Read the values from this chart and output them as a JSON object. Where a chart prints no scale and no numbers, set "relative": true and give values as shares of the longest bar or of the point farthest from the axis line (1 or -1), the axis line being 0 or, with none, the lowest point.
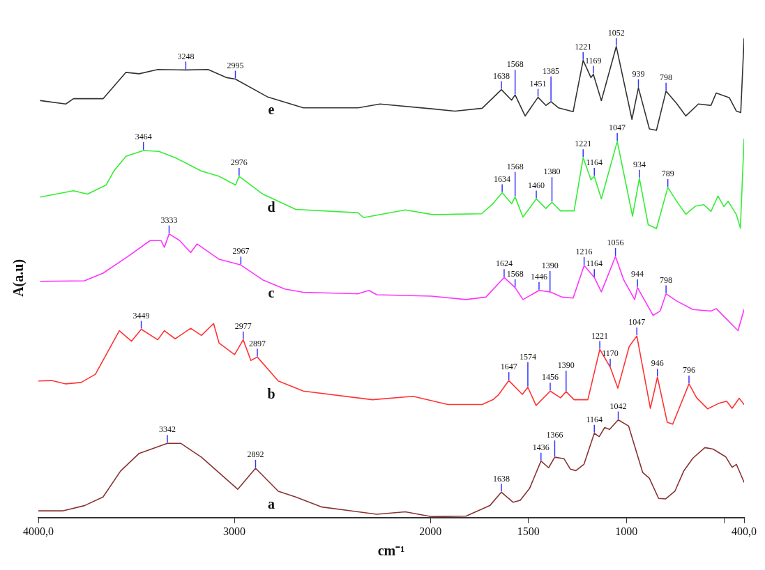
{
  "chart_data": {
    "type": "line",
    "relative": true,
    "xlabel": "cm⁻¹",
    "ylabel": "A(a.u)",
    "marker": "none",
    "line_style": "solid",
    "xlim": [
      4000,
      400
    ],
    "xticks": [
      {
        "value": 4000,
        "label": "4000,0"
      },
      3000,
      2000,
      1500,
      1000,
      {
        "value": 500,
        "label": null
      },
      {
        "value": 400,
        "label": "400,0"
      }
    ],
    "series": [
      {
        "name": "e",
        "color": "#333333",
        "x": [
          3989,
          3860,
          3821,
          3670,
          3553,
          3486,
          3391,
          3248,
          3134,
          3039,
          2995,
          2832,
          2648,
          2369,
          2257,
          1994,
          1875,
          1736,
          1638,
          1586,
          1568,
          1517,
          1451,
          1411,
          1385,
          1347,
          1272,
          1221,
          1181,
          1169,
          1128,
          1052,
          972,
          939,
          883,
          847,
          798,
          744,
          697,
          633,
          569,
          542,
          475,
          439,
          417,
          400
        ],
        "values": [
          0.87,
          0.863,
          0.874,
          0.874,
          0.929,
          0.926,
          0.935,
          0.934,
          0.935,
          0.918,
          0.915,
          0.878,
          0.855,
          0.855,
          0.863,
          0.853,
          0.848,
          0.854,
          0.893,
          0.871,
          0.882,
          0.838,
          0.877,
          0.86,
          0.868,
          0.855,
          0.847,
          0.954,
          0.918,
          0.925,
          0.87,
          0.983,
          0.831,
          0.897,
          0.811,
          0.808,
          0.89,
          0.864,
          0.838,
          0.863,
          0.86,
          0.886,
          0.876,
          0.848,
          0.845,
          1.0
        ]
      },
      {
        "name": "d",
        "color": "#33ee33",
        "x": [
          3989,
          3821,
          3749,
          3654,
          3615,
          3553,
          3464,
          3385,
          3302,
          3168,
          3078,
          2994,
          2976,
          2855,
          2687,
          2369,
          2341,
          2128,
          1986,
          1864,
          1739,
          1681,
          1634,
          1586,
          1568,
          1528,
          1460,
          1411,
          1380,
          1336,
          1267,
          1221,
          1181,
          1164,
          1128,
          1047,
          969,
          934,
          889,
          847,
          789,
          744,
          697,
          647,
          606,
          569,
          533,
          503,
          481,
          439,
          419,
          400
        ],
        "values": [
          0.669,
          0.682,
          0.675,
          0.694,
          0.723,
          0.754,
          0.766,
          0.764,
          0.751,
          0.723,
          0.712,
          0.694,
          0.712,
          0.675,
          0.643,
          0.636,
          0.626,
          0.642,
          0.632,
          0.633,
          0.634,
          0.655,
          0.678,
          0.655,
          0.669,
          0.627,
          0.665,
          0.645,
          0.658,
          0.64,
          0.64,
          0.751,
          0.705,
          0.712,
          0.665,
          0.785,
          0.629,
          0.708,
          0.611,
          0.603,
          0.689,
          0.66,
          0.633,
          0.65,
          0.653,
          0.639,
          0.671,
          0.649,
          0.66,
          0.632,
          0.604,
          0.79
        ]
      },
      {
        "name": "c",
        "color": "#ff33ff",
        "x": [
          3989,
          3765,
          3670,
          3542,
          3430,
          3374,
          3357,
          3333,
          3279,
          3223,
          3190,
          3078,
          2967,
          2855,
          2743,
          2648,
          2369,
          2313,
          2274,
          1994,
          1819,
          1717,
          1624,
          1568,
          1528,
          1446,
          1390,
          1328,
          1272,
          1216,
          1164,
          1128,
          1056,
          1014,
          958,
          944,
          864,
          828,
          798,
          744,
          661,
          569,
          542,
          431,
          400
        ],
        "values": [
          0.493,
          0.494,
          0.51,
          0.545,
          0.578,
          0.578,
          0.564,
          0.592,
          0.578,
          0.553,
          0.571,
          0.539,
          0.527,
          0.496,
          0.477,
          0.47,
          0.467,
          0.474,
          0.465,
          0.462,
          0.455,
          0.46,
          0.501,
          0.48,
          0.455,
          0.474,
          0.471,
          0.46,
          0.458,
          0.526,
          0.501,
          0.471,
          0.545,
          0.496,
          0.455,
          0.48,
          0.422,
          0.431,
          0.467,
          0.452,
          0.434,
          0.431,
          0.436,
          0.39,
          0.434
        ]
      },
      {
        "name": "b",
        "color": "#ff3333",
        "x": [
          4000,
          3933,
          3860,
          3782,
          3709,
          3587,
          3525,
          3475,
          3391,
          3357,
          3302,
          3223,
          3168,
          3106,
          3078,
          2999,
          2955,
          2916,
          2883,
          2776,
          2648,
          2296,
          2089,
          1911,
          1736,
          1681,
          1653,
          1600,
          1531,
          1503,
          1461,
          1389,
          1336,
          1308,
          1267,
          1197,
          1136,
          1083,
          1044,
          986,
          947,
          878,
          842,
          792,
          764,
          681,
          642,
          586,
          531,
          489,
          461,
          425,
          400
        ],
        "values": [
          0.285,
          0.286,
          0.279,
          0.282,
          0.299,
          0.39,
          0.368,
          0.393,
          0.371,
          0.39,
          0.373,
          0.395,
          0.38,
          0.405,
          0.364,
          0.34,
          0.371,
          0.328,
          0.335,
          0.285,
          0.264,
          0.246,
          0.253,
          0.236,
          0.236,
          0.246,
          0.256,
          0.286,
          0.257,
          0.272,
          0.234,
          0.264,
          0.25,
          0.263,
          0.246,
          0.246,
          0.351,
          0.314,
          0.27,
          0.357,
          0.379,
          0.228,
          0.293,
          0.199,
          0.195,
          0.279,
          0.25,
          0.227,
          0.238,
          0.243,
          0.228,
          0.249,
          0.236
        ]
      },
      {
        "name": "a",
        "color": "#883333",
        "x": [
          4000,
          3877,
          3765,
          3670,
          3581,
          3486,
          3342,
          3274,
          3168,
          2983,
          2892,
          2776,
          2687,
          2553,
          2274,
          2128,
          1994,
          1819,
          1697,
          1638,
          1578,
          1542,
          1494,
          1436,
          1397,
          1366,
          1319,
          1286,
          1258,
          1217,
          1164,
          1139,
          1111,
          1086,
          1042,
          989,
          917,
          883,
          836,
          800,
          753,
          708,
          661,
          600,
          558,
          494,
          461,
          439,
          400
        ],
        "values": [
          0.014,
          0.014,
          0.025,
          0.043,
          0.097,
          0.134,
          0.155,
          0.155,
          0.126,
          0.059,
          0.103,
          0.055,
          0.043,
          0.022,
          0.007,
          0.012,
          0.002,
          0.003,
          0.025,
          0.053,
          0.032,
          0.036,
          0.061,
          0.118,
          0.104,
          0.126,
          0.123,
          0.101,
          0.098,
          0.111,
          0.176,
          0.169,
          0.188,
          0.184,
          0.204,
          0.191,
          0.094,
          0.082,
          0.04,
          0.039,
          0.055,
          0.097,
          0.124,
          0.146,
          0.143,
          0.127,
          0.105,
          0.111,
          0.074
        ]
      }
    ],
    "annotations": [
      {
        "text": "3248",
        "x": 3248,
        "y": 0.934
      },
      {
        "text": "2995",
        "x": 2995,
        "y": 0.915
      },
      {
        "text": "1638",
        "x": 1638,
        "y": 0.893
      },
      {
        "text": "1568",
        "x": 1568,
        "y": 0.882
      },
      {
        "text": "1451",
        "x": 1451,
        "y": 0.877
      },
      {
        "text": "1385",
        "x": 1385,
        "y": 0.868
      },
      {
        "text": "1221",
        "x": 1221,
        "y": 0.954
      },
      {
        "text": "1169",
        "x": 1169,
        "y": 0.925
      },
      {
        "text": "1052",
        "x": 1052,
        "y": 0.983
      },
      {
        "text": "939",
        "x": 939,
        "y": 0.897
      },
      {
        "text": "798",
        "x": 798,
        "y": 0.89
      },
      {
        "text": "3464",
        "x": 3464,
        "y": 0.766
      },
      {
        "text": "2976",
        "x": 2976,
        "y": 0.712
      },
      {
        "text": "1634",
        "x": 1634,
        "y": 0.678
      },
      {
        "text": "1568",
        "x": 1568,
        "y": 0.669
      },
      {
        "text": "1460",
        "x": 1460,
        "y": 0.665
      },
      {
        "text": "1380",
        "x": 1380,
        "y": 0.658
      },
      {
        "text": "1221",
        "x": 1221,
        "y": 0.751
      },
      {
        "text": "1164",
        "x": 1164,
        "y": 0.712
      },
      {
        "text": "1047",
        "x": 1047,
        "y": 0.785
      },
      {
        "text": "934",
        "x": 934,
        "y": 0.708
      },
      {
        "text": "789",
        "x": 789,
        "y": 0.689
      },
      {
        "text": "3333",
        "x": 3333,
        "y": 0.592
      },
      {
        "text": "2967",
        "x": 2967,
        "y": 0.527
      },
      {
        "text": "1624",
        "x": 1624,
        "y": 0.501
      },
      {
        "text": "1568",
        "x": 1568,
        "y": 0.48
      },
      {
        "text": "1446",
        "x": 1446,
        "y": 0.474
      },
      {
        "text": "1390",
        "x": 1390,
        "y": 0.471
      },
      {
        "text": "1216",
        "x": 1216,
        "y": 0.526
      },
      {
        "text": "1164",
        "x": 1164,
        "y": 0.501
      },
      {
        "text": "1056",
        "x": 1056,
        "y": 0.545
      },
      {
        "text": "944",
        "x": 944,
        "y": 0.48
      },
      {
        "text": "798",
        "x": 798,
        "y": 0.467
      },
      {
        "text": "3449",
        "x": 3475,
        "y": 0.393
      },
      {
        "text": "2977",
        "x": 2955,
        "y": 0.371
      },
      {
        "text": "2897",
        "x": 2883,
        "y": 0.335
      },
      {
        "text": "1647",
        "x": 1600,
        "y": 0.286
      },
      {
        "text": "1574",
        "x": 1503,
        "y": 0.272
      },
      {
        "text": "1456",
        "x": 1389,
        "y": 0.264
      },
      {
        "text": "1390",
        "x": 1308,
        "y": 0.263
      },
      {
        "text": "1221",
        "x": 1136,
        "y": 0.351
      },
      {
        "text": "1170",
        "x": 1083,
        "y": 0.314
      },
      {
        "text": "1047",
        "x": 947,
        "y": 0.379
      },
      {
        "text": "946",
        "x": 842,
        "y": 0.293
      },
      {
        "text": "796",
        "x": 681,
        "y": 0.279
      },
      {
        "text": "3342",
        "x": 3342,
        "y": 0.155
      },
      {
        "text": "2892",
        "x": 2892,
        "y": 0.103
      },
      {
        "text": "1638",
        "x": 1638,
        "y": 0.053
      },
      {
        "text": "1436",
        "x": 1436,
        "y": 0.118
      },
      {
        "text": "1366",
        "x": 1366,
        "y": 0.126
      },
      {
        "text": "1164",
        "x": 1164,
        "y": 0.176
      },
      {
        "text": "1042",
        "x": 1042,
        "y": 0.204
      }
    ]
  }
}
